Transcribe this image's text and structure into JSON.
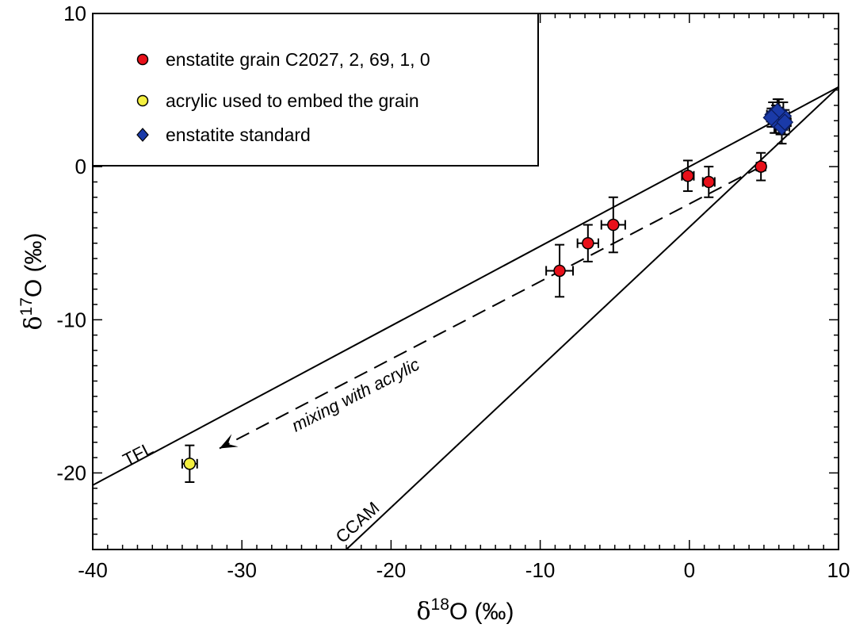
{
  "chart_data": {
    "type": "scatter",
    "xlabel": "δ18O (‰)",
    "ylabel": "δ17O (‰)",
    "xlabel_parts": {
      "delta": "δ",
      "sup": "18",
      "rest": "O (‰)"
    },
    "ylabel_parts": {
      "delta": "δ",
      "sup": "17",
      "rest": "O (‰)"
    },
    "xlim": [
      -40,
      10
    ],
    "ylim": [
      -25,
      10
    ],
    "xticks": [
      -40,
      -30,
      -20,
      -10,
      0,
      10
    ],
    "yticks": [
      -20,
      -10,
      0,
      10
    ],
    "xtick_labels": [
      "-40",
      "-30",
      "-20",
      "-10",
      "0",
      "10"
    ],
    "ytick_labels": [
      "-20",
      "-10",
      "0",
      "10"
    ],
    "grid": false,
    "legend_position": "top-left",
    "series": [
      {
        "name": "enstatite grain C2027, 2, 69, 1, 0",
        "marker": "circle",
        "color": "#e8101a",
        "points": [
          {
            "x": -8.7,
            "y": -6.8,
            "xerr": 0.9,
            "yerr": 1.7
          },
          {
            "x": -6.8,
            "y": -5.0,
            "xerr": 0.7,
            "yerr": 1.2
          },
          {
            "x": -5.1,
            "y": -3.8,
            "xerr": 0.8,
            "yerr": 1.8
          },
          {
            "x": -0.1,
            "y": -0.6,
            "xerr": 0.4,
            "yerr": 1.0
          },
          {
            "x": 1.3,
            "y": -1.0,
            "xerr": 0.4,
            "yerr": 1.0
          },
          {
            "x": 4.8,
            "y": 0.0,
            "xerr": 0.3,
            "yerr": 0.9
          }
        ]
      },
      {
        "name": "acrylic used to embed the grain",
        "marker": "circle",
        "color": "#f4f040",
        "points": [
          {
            "x": -33.5,
            "y": -19.4,
            "xerr": 0.5,
            "yerr": 1.2
          }
        ]
      },
      {
        "name": "enstatite standard",
        "marker": "diamond",
        "color": "#1a3aa8",
        "points": [
          {
            "x": 5.6,
            "y": 3.4,
            "xerr": 0.4,
            "yerr": 0.8
          },
          {
            "x": 5.8,
            "y": 3.1,
            "xerr": 0.4,
            "yerr": 0.9
          },
          {
            "x": 6.0,
            "y": 3.5,
            "xerr": 0.3,
            "yerr": 0.9
          },
          {
            "x": 6.1,
            "y": 2.8,
            "xerr": 0.4,
            "yerr": 0.7
          },
          {
            "x": 5.7,
            "y": 3.0,
            "xerr": 0.4,
            "yerr": 0.8
          },
          {
            "x": 6.3,
            "y": 3.3,
            "xerr": 0.4,
            "yerr": 0.9
          },
          {
            "x": 5.9,
            "y": 3.6,
            "xerr": 0.3,
            "yerr": 0.8
          },
          {
            "x": 6.2,
            "y": 2.6,
            "xerr": 0.5,
            "yerr": 1.1
          },
          {
            "x": 5.5,
            "y": 3.2,
            "xerr": 0.3,
            "yerr": 0.6
          },
          {
            "x": 6.4,
            "y": 2.9,
            "xerr": 0.4,
            "yerr": 0.8
          }
        ]
      }
    ],
    "reference_lines": [
      {
        "label": "TFL",
        "x": [
          -40,
          10
        ],
        "y": [
          -20.8,
          5.2
        ]
      },
      {
        "label": "CCAM",
        "x": [
          -23.0,
          10
        ],
        "y": [
          -25,
          5.2
        ]
      }
    ],
    "mixing_line": {
      "label": "mixing with acrylic",
      "x": [
        4.8,
        -31.5
      ],
      "y": [
        0.0,
        -18.4
      ]
    }
  }
}
